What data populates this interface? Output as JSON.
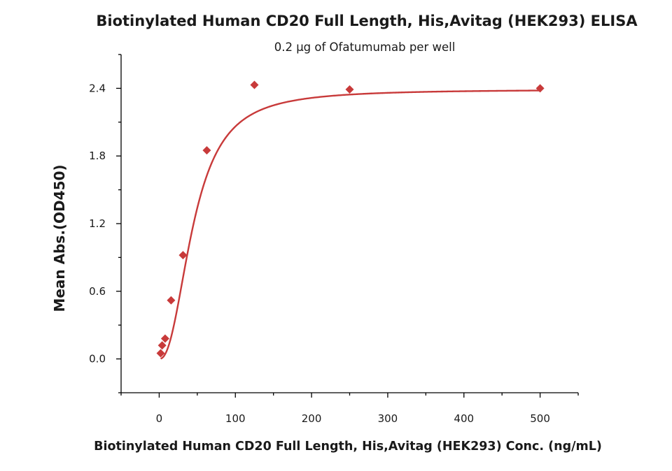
{
  "chart_data": {
    "type": "scatter",
    "title": "Biotinylated Human CD20 Full Length, His,Avitag (HEK293) ELISA",
    "subtitle": "0.2 μg of Ofatumumab per well",
    "xlabel": "Biotinylated Human CD20 Full Length, His,Avitag (HEK293) Conc. (ng/mL)",
    "ylabel": "Mean Abs.(OD450)",
    "xlim": [
      -50,
      550
    ],
    "ylim": [
      -0.3,
      2.7
    ],
    "xticks": [
      0,
      100,
      200,
      300,
      400,
      500
    ],
    "xtick_labels": [
      "0",
      "100",
      "200",
      "300",
      "400",
      "500"
    ],
    "yticks": [
      0.0,
      0.6,
      1.2,
      1.8,
      2.4
    ],
    "ytick_labels": [
      "0.0",
      "0.6",
      "1.2",
      "1.8",
      "2.4"
    ],
    "grid": false,
    "series": [
      {
        "color": "#c83a3a",
        "marker": "diamond",
        "x": [
          1.95,
          3.9,
          7.8,
          15.6,
          31.25,
          62.5,
          125,
          250,
          500
        ],
        "y": [
          0.05,
          0.12,
          0.18,
          0.52,
          0.92,
          1.85,
          2.43,
          2.39,
          2.4
        ],
        "fit": "sigmoidal"
      }
    ]
  }
}
